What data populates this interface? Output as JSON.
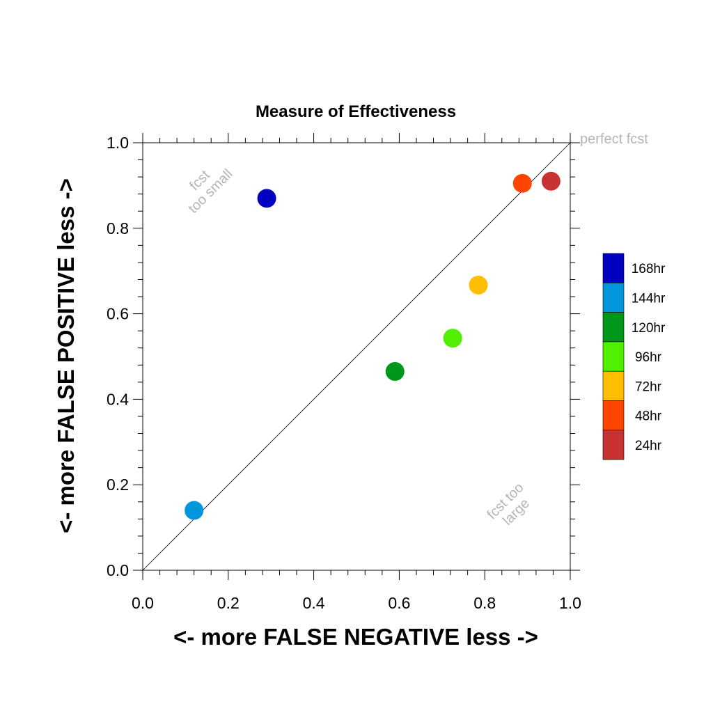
{
  "chart_data": {
    "type": "scatter",
    "title": "Measure of Effectiveness",
    "xlabel": "<- more   FALSE NEGATIVE   less ->",
    "ylabel": "<- more   FALSE POSITIVE   less ->",
    "xlim": [
      0.0,
      1.0
    ],
    "ylim": [
      0.0,
      1.0
    ],
    "xticks": [
      "0.0",
      "0.2",
      "0.4",
      "0.6",
      "0.8",
      "1.0"
    ],
    "yticks": [
      "0.0",
      "0.2",
      "0.4",
      "0.6",
      "0.8",
      "1.0"
    ],
    "grid": false,
    "legend_position": "right",
    "reference_line": {
      "from": [
        0.0,
        0.0
      ],
      "to": [
        1.0,
        1.0
      ],
      "label": "perfect fcst"
    },
    "annotations": [
      {
        "lines": [
          "fcst",
          "too small"
        ],
        "region": "upper-left"
      },
      {
        "lines": [
          "fcst too",
          "large"
        ],
        "region": "lower-right"
      }
    ],
    "series": [
      {
        "name": "168hr",
        "color": "#0000c0",
        "x": 0.29,
        "y": 0.87
      },
      {
        "name": "144hr",
        "color": "#0096dc",
        "x": 0.12,
        "y": 0.14
      },
      {
        "name": "120hr",
        "color": "#009619",
        "x": 0.59,
        "y": 0.465
      },
      {
        "name": "96hr",
        "color": "#50f000",
        "x": 0.725,
        "y": 0.543
      },
      {
        "name": "72hr",
        "color": "#ffbe00",
        "x": 0.785,
        "y": 0.667
      },
      {
        "name": "48hr",
        "color": "#ff4600",
        "x": 0.888,
        "y": 0.905
      },
      {
        "name": "24hr",
        "color": "#c83232",
        "x": 0.955,
        "y": 0.91
      }
    ]
  }
}
